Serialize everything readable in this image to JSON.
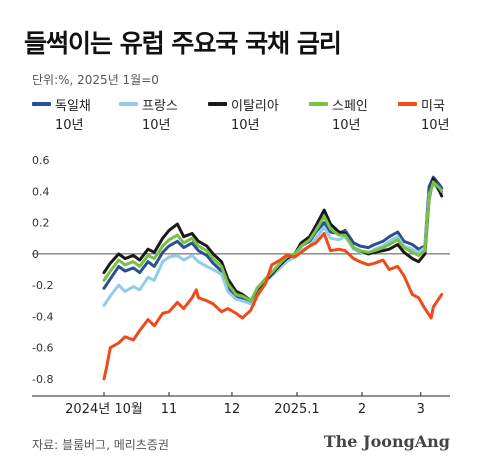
{
  "title": "들썩이는 유럽 주요국 국채 금리",
  "subtitle": "단위:%, 2025년 1월=0",
  "source": "자료: 블룸버그, 메리츠증권",
  "logo": "The JoongAng",
  "legend": [
    {
      "line1": "독일채",
      "line2": "10년",
      "color": "#2a4f94"
    },
    {
      "line1": "프랑스",
      "line2": "10년",
      "color": "#8fcdeb"
    },
    {
      "line1": "이탈리아",
      "line2": "10년",
      "color": "#1a1a1a"
    },
    {
      "line1": "스페인",
      "line2": "10년",
      "color": "#79c043"
    },
    {
      "line1": "미국",
      "line2": "10년",
      "color": "#f04a1b"
    }
  ],
  "chart_data": {
    "type": "line",
    "xlabel": "",
    "ylabel": "",
    "ylim": [
      -0.85,
      0.65
    ],
    "yticks": [
      0.6,
      0.4,
      0.2,
      0,
      -0.2,
      -0.4,
      -0.6,
      -0.8
    ],
    "ytick_labels": [
      "0.6",
      "0.4",
      "0.2",
      "0",
      "-0.2",
      "-0.4",
      "-0.6",
      "-0.8"
    ],
    "xlim": [
      "2024-10-01",
      "2025-03-14"
    ],
    "xticks": [
      {
        "date": "2024-10-01",
        "label": "2024년 10월"
      },
      {
        "date": "2024-11-01",
        "label": "11"
      },
      {
        "date": "2024-12-01",
        "label": "12"
      },
      {
        "date": "2025-01-01",
        "label": "2025.1"
      },
      {
        "date": "2025-02-01",
        "label": "2"
      },
      {
        "date": "2025-03-01",
        "label": "3"
      }
    ],
    "zero_line": true,
    "series": [
      {
        "name": "독일채 10년",
        "color": "#2a4f94",
        "points": [
          [
            "2024-10-01",
            -0.22
          ],
          [
            "2024-10-04",
            -0.16
          ],
          [
            "2024-10-08",
            -0.08
          ],
          [
            "2024-10-11",
            -0.11
          ],
          [
            "2024-10-15",
            -0.09
          ],
          [
            "2024-10-18",
            -0.12
          ],
          [
            "2024-10-22",
            -0.05
          ],
          [
            "2024-10-25",
            -0.08
          ],
          [
            "2024-10-29",
            0.01
          ],
          [
            "2024-11-01",
            0.05
          ],
          [
            "2024-11-05",
            0.08
          ],
          [
            "2024-11-08",
            0.04
          ],
          [
            "2024-11-12",
            0.07
          ],
          [
            "2024-11-15",
            0.02
          ],
          [
            "2024-11-19",
            -0.01
          ],
          [
            "2024-11-22",
            -0.06
          ],
          [
            "2024-11-26",
            -0.11
          ],
          [
            "2024-11-29",
            -0.22
          ],
          [
            "2024-12-03",
            -0.28
          ],
          [
            "2024-12-06",
            -0.29
          ],
          [
            "2024-12-10",
            -0.31
          ],
          [
            "2024-12-13",
            -0.22
          ],
          [
            "2024-12-17",
            -0.16
          ],
          [
            "2024-12-20",
            -0.12
          ],
          [
            "2024-12-24",
            -0.06
          ],
          [
            "2024-12-27",
            -0.03
          ],
          [
            "2024-12-31",
            -0.01
          ],
          [
            "2025-01-03",
            0.05
          ],
          [
            "2025-01-07",
            0.08
          ],
          [
            "2025-01-10",
            0.14
          ],
          [
            "2025-01-14",
            0.2
          ],
          [
            "2025-01-17",
            0.14
          ],
          [
            "2025-01-21",
            0.13
          ],
          [
            "2025-01-24",
            0.15
          ],
          [
            "2025-01-28",
            0.07
          ],
          [
            "2025-01-31",
            0.05
          ],
          [
            "2025-02-04",
            0.04
          ],
          [
            "2025-02-07",
            0.06
          ],
          [
            "2025-02-11",
            0.08
          ],
          [
            "2025-02-14",
            0.11
          ],
          [
            "2025-02-18",
            0.14
          ],
          [
            "2025-02-21",
            0.08
          ],
          [
            "2025-02-25",
            0.06
          ],
          [
            "2025-02-28",
            0.03
          ],
          [
            "2025-03-03",
            0.05
          ],
          [
            "2025-03-05",
            0.43
          ],
          [
            "2025-03-07",
            0.49
          ],
          [
            "2025-03-10",
            0.44
          ],
          [
            "2025-03-11",
            0.42
          ]
        ]
      },
      {
        "name": "프랑스 10년",
        "color": "#8fcdeb",
        "points": [
          [
            "2024-10-01",
            -0.33
          ],
          [
            "2024-10-04",
            -0.27
          ],
          [
            "2024-10-08",
            -0.2
          ],
          [
            "2024-10-11",
            -0.24
          ],
          [
            "2024-10-15",
            -0.21
          ],
          [
            "2024-10-18",
            -0.23
          ],
          [
            "2024-10-22",
            -0.15
          ],
          [
            "2024-10-25",
            -0.17
          ],
          [
            "2024-10-29",
            -0.05
          ],
          [
            "2024-11-01",
            -0.02
          ],
          [
            "2024-11-05",
            -0.01
          ],
          [
            "2024-11-08",
            -0.04
          ],
          [
            "2024-11-12",
            -0.01
          ],
          [
            "2024-11-15",
            -0.05
          ],
          [
            "2024-11-19",
            -0.08
          ],
          [
            "2024-11-22",
            -0.1
          ],
          [
            "2024-11-26",
            -0.13
          ],
          [
            "2024-11-29",
            -0.24
          ],
          [
            "2024-12-03",
            -0.29
          ],
          [
            "2024-12-06",
            -0.3
          ],
          [
            "2024-12-10",
            -0.32
          ],
          [
            "2024-12-13",
            -0.24
          ],
          [
            "2024-12-17",
            -0.18
          ],
          [
            "2024-12-20",
            -0.14
          ],
          [
            "2024-12-24",
            -0.09
          ],
          [
            "2024-12-27",
            -0.05
          ],
          [
            "2024-12-31",
            -0.02
          ],
          [
            "2025-01-03",
            0.02
          ],
          [
            "2025-01-07",
            0.05
          ],
          [
            "2025-01-10",
            0.1
          ],
          [
            "2025-01-14",
            0.17
          ],
          [
            "2025-01-17",
            0.1
          ],
          [
            "2025-01-21",
            0.09
          ],
          [
            "2025-01-24",
            0.11
          ],
          [
            "2025-01-28",
            0.03
          ],
          [
            "2025-01-31",
            0.01
          ],
          [
            "2025-02-04",
            0.0
          ],
          [
            "2025-02-07",
            0.03
          ],
          [
            "2025-02-11",
            0.05
          ],
          [
            "2025-02-14",
            0.08
          ],
          [
            "2025-02-18",
            0.11
          ],
          [
            "2025-02-21",
            0.05
          ],
          [
            "2025-02-25",
            0.03
          ],
          [
            "2025-02-28",
            0.01
          ],
          [
            "2025-03-03",
            0.04
          ],
          [
            "2025-03-05",
            0.38
          ],
          [
            "2025-03-07",
            0.45
          ],
          [
            "2025-03-10",
            0.4
          ],
          [
            "2025-03-11",
            0.39
          ]
        ]
      },
      {
        "name": "이탈리아 10년",
        "color": "#1a1a1a",
        "points": [
          [
            "2024-10-01",
            -0.12
          ],
          [
            "2024-10-04",
            -0.06
          ],
          [
            "2024-10-08",
            0.0
          ],
          [
            "2024-10-11",
            -0.03
          ],
          [
            "2024-10-15",
            -0.01
          ],
          [
            "2024-10-18",
            -0.04
          ],
          [
            "2024-10-22",
            0.03
          ],
          [
            "2024-10-25",
            0.01
          ],
          [
            "2024-10-29",
            0.1
          ],
          [
            "2024-11-01",
            0.15
          ],
          [
            "2024-11-05",
            0.19
          ],
          [
            "2024-11-08",
            0.11
          ],
          [
            "2024-11-12",
            0.13
          ],
          [
            "2024-11-15",
            0.08
          ],
          [
            "2024-11-19",
            0.05
          ],
          [
            "2024-11-22",
            0.0
          ],
          [
            "2024-11-26",
            -0.05
          ],
          [
            "2024-11-29",
            -0.16
          ],
          [
            "2024-12-03",
            -0.24
          ],
          [
            "2024-12-06",
            -0.26
          ],
          [
            "2024-12-10",
            -0.3
          ],
          [
            "2024-12-13",
            -0.23
          ],
          [
            "2024-12-17",
            -0.17
          ],
          [
            "2024-12-20",
            -0.13
          ],
          [
            "2024-12-24",
            -0.07
          ],
          [
            "2024-12-27",
            -0.03
          ],
          [
            "2024-12-31",
            0.0
          ],
          [
            "2025-01-03",
            0.07
          ],
          [
            "2025-01-07",
            0.11
          ],
          [
            "2025-01-10",
            0.18
          ],
          [
            "2025-01-14",
            0.28
          ],
          [
            "2025-01-17",
            0.19
          ],
          [
            "2025-01-21",
            0.14
          ],
          [
            "2025-01-24",
            0.13
          ],
          [
            "2025-01-28",
            0.04
          ],
          [
            "2025-01-31",
            0.02
          ],
          [
            "2025-02-04",
            0.0
          ],
          [
            "2025-02-07",
            0.01
          ],
          [
            "2025-02-11",
            0.02
          ],
          [
            "2025-02-14",
            0.03
          ],
          [
            "2025-02-18",
            0.06
          ],
          [
            "2025-02-21",
            0.01
          ],
          [
            "2025-02-25",
            -0.03
          ],
          [
            "2025-02-28",
            -0.05
          ],
          [
            "2025-03-03",
            0.0
          ],
          [
            "2025-03-05",
            0.35
          ],
          [
            "2025-03-07",
            0.48
          ],
          [
            "2025-03-10",
            0.4
          ],
          [
            "2025-03-11",
            0.37
          ]
        ]
      },
      {
        "name": "스페인 10년",
        "color": "#79c043",
        "points": [
          [
            "2024-10-01",
            -0.17
          ],
          [
            "2024-10-04",
            -0.11
          ],
          [
            "2024-10-08",
            -0.04
          ],
          [
            "2024-10-11",
            -0.07
          ],
          [
            "2024-10-15",
            -0.05
          ],
          [
            "2024-10-18",
            -0.08
          ],
          [
            "2024-10-22",
            -0.01
          ],
          [
            "2024-10-25",
            -0.03
          ],
          [
            "2024-10-29",
            0.05
          ],
          [
            "2024-11-01",
            0.09
          ],
          [
            "2024-11-05",
            0.12
          ],
          [
            "2024-11-08",
            0.07
          ],
          [
            "2024-11-12",
            0.1
          ],
          [
            "2024-11-15",
            0.05
          ],
          [
            "2024-11-19",
            0.02
          ],
          [
            "2024-11-22",
            -0.03
          ],
          [
            "2024-11-26",
            -0.08
          ],
          [
            "2024-11-29",
            -0.19
          ],
          [
            "2024-12-03",
            -0.26
          ],
          [
            "2024-12-06",
            -0.27
          ],
          [
            "2024-12-10",
            -0.3
          ],
          [
            "2024-12-13",
            -0.22
          ],
          [
            "2024-12-17",
            -0.16
          ],
          [
            "2024-12-20",
            -0.12
          ],
          [
            "2024-12-24",
            -0.06
          ],
          [
            "2024-12-27",
            -0.02
          ],
          [
            "2024-12-31",
            0.0
          ],
          [
            "2025-01-03",
            0.05
          ],
          [
            "2025-01-07",
            0.09
          ],
          [
            "2025-01-10",
            0.15
          ],
          [
            "2025-01-14",
            0.24
          ],
          [
            "2025-01-17",
            0.16
          ],
          [
            "2025-01-21",
            0.12
          ],
          [
            "2025-01-24",
            0.12
          ],
          [
            "2025-01-28",
            0.04
          ],
          [
            "2025-01-31",
            0.02
          ],
          [
            "2025-02-04",
            0.01
          ],
          [
            "2025-02-07",
            0.02
          ],
          [
            "2025-02-11",
            0.04
          ],
          [
            "2025-02-14",
            0.06
          ],
          [
            "2025-02-18",
            0.09
          ],
          [
            "2025-02-21",
            0.04
          ],
          [
            "2025-02-25",
            0.01
          ],
          [
            "2025-02-28",
            -0.01
          ],
          [
            "2025-03-03",
            0.02
          ],
          [
            "2025-03-05",
            0.36
          ],
          [
            "2025-03-07",
            0.46
          ],
          [
            "2025-03-10",
            0.42
          ],
          [
            "2025-03-11",
            0.4
          ]
        ]
      },
      {
        "name": "미국 10년",
        "color": "#f04a1b",
        "points": [
          [
            "2024-10-01",
            -0.8
          ],
          [
            "2024-10-02",
            -0.74
          ],
          [
            "2024-10-04",
            -0.6
          ],
          [
            "2024-10-08",
            -0.57
          ],
          [
            "2024-10-11",
            -0.53
          ],
          [
            "2024-10-15",
            -0.55
          ],
          [
            "2024-10-18",
            -0.49
          ],
          [
            "2024-10-22",
            -0.42
          ],
          [
            "2024-10-25",
            -0.46
          ],
          [
            "2024-10-29",
            -0.38
          ],
          [
            "2024-11-01",
            -0.37
          ],
          [
            "2024-11-05",
            -0.31
          ],
          [
            "2024-11-08",
            -0.35
          ],
          [
            "2024-11-12",
            -0.28
          ],
          [
            "2024-11-14",
            -0.23
          ],
          [
            "2024-11-15",
            -0.28
          ],
          [
            "2024-11-19",
            -0.3
          ],
          [
            "2024-11-22",
            -0.32
          ],
          [
            "2024-11-26",
            -0.37
          ],
          [
            "2024-11-29",
            -0.35
          ],
          [
            "2024-12-03",
            -0.38
          ],
          [
            "2024-12-06",
            -0.41
          ],
          [
            "2024-12-10",
            -0.36
          ],
          [
            "2024-12-13",
            -0.27
          ],
          [
            "2024-12-17",
            -0.19
          ],
          [
            "2024-12-20",
            -0.07
          ],
          [
            "2024-12-24",
            -0.04
          ],
          [
            "2024-12-27",
            -0.01
          ],
          [
            "2024-12-31",
            -0.02
          ],
          [
            "2025-01-03",
            0.01
          ],
          [
            "2025-01-07",
            0.05
          ],
          [
            "2025-01-10",
            0.07
          ],
          [
            "2025-01-14",
            0.13
          ],
          [
            "2025-01-17",
            0.02
          ],
          [
            "2025-01-21",
            0.03
          ],
          [
            "2025-01-24",
            0.02
          ],
          [
            "2025-01-28",
            -0.03
          ],
          [
            "2025-01-31",
            -0.05
          ],
          [
            "2025-02-04",
            -0.07
          ],
          [
            "2025-02-07",
            -0.06
          ],
          [
            "2025-02-11",
            -0.04
          ],
          [
            "2025-02-14",
            -0.1
          ],
          [
            "2025-02-18",
            -0.08
          ],
          [
            "2025-02-21",
            -0.14
          ],
          [
            "2025-02-25",
            -0.26
          ],
          [
            "2025-02-28",
            -0.28
          ],
          [
            "2025-03-03",
            -0.35
          ],
          [
            "2025-03-05",
            -0.39
          ],
          [
            "2025-03-06",
            -0.41
          ],
          [
            "2025-03-07",
            -0.34
          ],
          [
            "2025-03-10",
            -0.28
          ],
          [
            "2025-03-11",
            -0.26
          ]
        ]
      }
    ]
  }
}
